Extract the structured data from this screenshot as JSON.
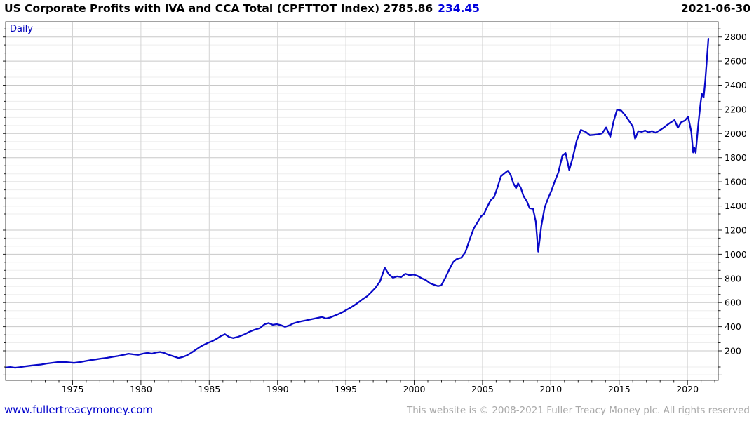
{
  "header": {
    "title": "US Corporate Profits with IVA and CCA Total (CPFTTOT Index) 2785.86",
    "change": "234.45",
    "date": "2021-06-30"
  },
  "chart": {
    "frequency_label": "Daily"
  },
  "footer": {
    "site": "www.fullertreacymoney.com",
    "copyright": "This website is © 2008-2021 Fuller Treacy Money plc. All rights reserved"
  },
  "colors": {
    "line": "#0808c8",
    "header_change": "#0000dd",
    "daily_label": "#0000bb",
    "footer_link": "#0000cc",
    "copyright_gray": "#a9a9a9",
    "grid_major": "#c8c8c8",
    "grid_minor": "#ededed",
    "grid_vertical": "#d4d4d4",
    "border": "#444444",
    "tick": "#222222",
    "tick_label": "#000000"
  },
  "chart_data": {
    "type": "line",
    "title": "US Corporate Profits with IVA and CCA Total (CPFTTOT Index)",
    "series_name": "CPFTTOT Index",
    "frequency": "Daily",
    "last_value": 2785.86,
    "last_change": 234.45,
    "last_date": "2021-06-30",
    "xlabel": "",
    "ylabel": "",
    "xlim": [
      1970.1,
      2022.25
    ],
    "ylim": [
      -44,
      2926
    ],
    "x_major_ticks": [
      1975,
      1980,
      1985,
      1990,
      1995,
      2000,
      2005,
      2010,
      2015,
      2020
    ],
    "x_minor_step": 1,
    "y_major_ticks": [
      200,
      400,
      600,
      800,
      1000,
      1200,
      1400,
      1600,
      1800,
      2000,
      2200,
      2400,
      2600,
      2800
    ],
    "y_minor_step": 66.6667,
    "grid": true,
    "legend_position": "none",
    "points": [
      [
        1970.1,
        62
      ],
      [
        1970.45,
        66
      ],
      [
        1970.8,
        60
      ],
      [
        1971.1,
        64
      ],
      [
        1971.5,
        71
      ],
      [
        1971.9,
        77
      ],
      [
        1972.3,
        82
      ],
      [
        1972.7,
        87
      ],
      [
        1973.1,
        95
      ],
      [
        1973.5,
        101
      ],
      [
        1973.9,
        106
      ],
      [
        1974.3,
        109
      ],
      [
        1974.7,
        105
      ],
      [
        1975.1,
        100
      ],
      [
        1975.5,
        106
      ],
      [
        1975.9,
        114
      ],
      [
        1976.3,
        123
      ],
      [
        1976.7,
        129
      ],
      [
        1977.1,
        136
      ],
      [
        1977.5,
        142
      ],
      [
        1977.9,
        150
      ],
      [
        1978.3,
        157
      ],
      [
        1978.7,
        166
      ],
      [
        1979.1,
        176
      ],
      [
        1979.45,
        171
      ],
      [
        1979.8,
        167
      ],
      [
        1980.15,
        177
      ],
      [
        1980.5,
        183
      ],
      [
        1980.8,
        176
      ],
      [
        1981.1,
        186
      ],
      [
        1981.4,
        191
      ],
      [
        1981.7,
        183
      ],
      [
        1982.05,
        167
      ],
      [
        1982.4,
        154
      ],
      [
        1982.75,
        141
      ],
      [
        1983.05,
        149
      ],
      [
        1983.35,
        162
      ],
      [
        1983.65,
        181
      ],
      [
        1983.95,
        204
      ],
      [
        1984.25,
        227
      ],
      [
        1984.55,
        247
      ],
      [
        1984.9,
        266
      ],
      [
        1985.2,
        280
      ],
      [
        1985.55,
        300
      ],
      [
        1985.85,
        322
      ],
      [
        1986.15,
        338
      ],
      [
        1986.45,
        315
      ],
      [
        1986.75,
        306
      ],
      [
        1987.05,
        314
      ],
      [
        1987.35,
        326
      ],
      [
        1987.65,
        340
      ],
      [
        1987.95,
        358
      ],
      [
        1988.3,
        374
      ],
      [
        1988.7,
        388
      ],
      [
        1989.05,
        420
      ],
      [
        1989.35,
        430
      ],
      [
        1989.65,
        416
      ],
      [
        1989.95,
        421
      ],
      [
        1990.25,
        412
      ],
      [
        1990.55,
        399
      ],
      [
        1990.85,
        410
      ],
      [
        1991.15,
        427
      ],
      [
        1991.45,
        437
      ],
      [
        1991.75,
        445
      ],
      [
        1992.05,
        451
      ],
      [
        1992.35,
        459
      ],
      [
        1992.65,
        466
      ],
      [
        1992.95,
        473
      ],
      [
        1993.25,
        481
      ],
      [
        1993.55,
        468
      ],
      [
        1993.85,
        476
      ],
      [
        1994.15,
        490
      ],
      [
        1994.45,
        504
      ],
      [
        1994.75,
        520
      ],
      [
        1995.05,
        540
      ],
      [
        1995.35,
        558
      ],
      [
        1995.65,
        580
      ],
      [
        1995.95,
        604
      ],
      [
        1996.25,
        630
      ],
      [
        1996.55,
        652
      ],
      [
        1996.85,
        685
      ],
      [
        1997.15,
        720
      ],
      [
        1997.5,
        775
      ],
      [
        1997.85,
        888
      ],
      [
        1998.15,
        833
      ],
      [
        1998.45,
        806
      ],
      [
        1998.75,
        817
      ],
      [
        1999.05,
        811
      ],
      [
        1999.35,
        838
      ],
      [
        1999.65,
        827
      ],
      [
        1999.95,
        832
      ],
      [
        2000.25,
        821
      ],
      [
        2000.55,
        801
      ],
      [
        2000.85,
        786
      ],
      [
        2001.15,
        761
      ],
      [
        2001.45,
        747
      ],
      [
        2001.75,
        736
      ],
      [
        2001.98,
        742
      ],
      [
        2002.25,
        798
      ],
      [
        2002.55,
        870
      ],
      [
        2002.85,
        935
      ],
      [
        2003.1,
        960
      ],
      [
        2003.45,
        972
      ],
      [
        2003.75,
        1018
      ],
      [
        2004.05,
        1118
      ],
      [
        2004.35,
        1212
      ],
      [
        2004.65,
        1268
      ],
      [
        2004.9,
        1315
      ],
      [
        2005.1,
        1333
      ],
      [
        2005.35,
        1392
      ],
      [
        2005.6,
        1448
      ],
      [
        2005.85,
        1474
      ],
      [
        2006.1,
        1556
      ],
      [
        2006.35,
        1646
      ],
      [
        2006.6,
        1670
      ],
      [
        2006.85,
        1692
      ],
      [
        2007.05,
        1660
      ],
      [
        2007.25,
        1590
      ],
      [
        2007.45,
        1548
      ],
      [
        2007.6,
        1588
      ],
      [
        2007.8,
        1550
      ],
      [
        2008.0,
        1482
      ],
      [
        2008.25,
        1438
      ],
      [
        2008.45,
        1382
      ],
      [
        2008.7,
        1376
      ],
      [
        2008.9,
        1270
      ],
      [
        2009.08,
        1022
      ],
      [
        2009.3,
        1232
      ],
      [
        2009.55,
        1388
      ],
      [
        2009.8,
        1462
      ],
      [
        2010.05,
        1528
      ],
      [
        2010.3,
        1608
      ],
      [
        2010.55,
        1678
      ],
      [
        2010.85,
        1818
      ],
      [
        2011.08,
        1838
      ],
      [
        2011.35,
        1698
      ],
      [
        2011.6,
        1798
      ],
      [
        2011.9,
        1945
      ],
      [
        2012.2,
        2030
      ],
      [
        2012.55,
        2014
      ],
      [
        2012.85,
        1986
      ],
      [
        2013.15,
        1989
      ],
      [
        2013.45,
        1993
      ],
      [
        2013.75,
        2001
      ],
      [
        2014.05,
        2050
      ],
      [
        2014.35,
        1974
      ],
      [
        2014.6,
        2105
      ],
      [
        2014.85,
        2198
      ],
      [
        2015.15,
        2190
      ],
      [
        2015.45,
        2150
      ],
      [
        2015.75,
        2100
      ],
      [
        2016.0,
        2058
      ],
      [
        2016.17,
        1957
      ],
      [
        2016.4,
        2020
      ],
      [
        2016.65,
        2014
      ],
      [
        2016.9,
        2025
      ],
      [
        2017.15,
        2010
      ],
      [
        2017.4,
        2021
      ],
      [
        2017.65,
        2007
      ],
      [
        2017.9,
        2022
      ],
      [
        2018.2,
        2044
      ],
      [
        2018.5,
        2070
      ],
      [
        2018.8,
        2094
      ],
      [
        2019.05,
        2112
      ],
      [
        2019.3,
        2047
      ],
      [
        2019.55,
        2094
      ],
      [
        2019.8,
        2107
      ],
      [
        2020.05,
        2139
      ],
      [
        2020.28,
        2015
      ],
      [
        2020.42,
        1843
      ],
      [
        2020.5,
        1884
      ],
      [
        2020.6,
        1841
      ],
      [
        2020.8,
        2088
      ],
      [
        2020.95,
        2243
      ],
      [
        2021.05,
        2330
      ],
      [
        2021.18,
        2299
      ],
      [
        2021.3,
        2434
      ],
      [
        2021.42,
        2612
      ],
      [
        2021.53,
        2785.86
      ]
    ]
  }
}
